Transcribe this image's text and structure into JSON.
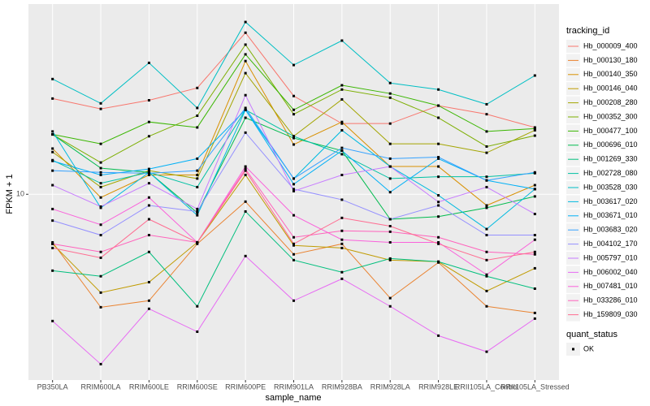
{
  "chart_data": {
    "type": "line",
    "x_label": "sample_name",
    "y_label": "FPKM + 1",
    "log_y": true,
    "grid": true,
    "ylim": [
      1.73,
      60.3
    ],
    "yticks": [
      10
    ],
    "legend_title": "tracking_id",
    "point_legend": {
      "title": "quant_status",
      "entries": [
        "OK"
      ],
      "color": "#000000"
    },
    "categories": [
      "PB350LA",
      "RRIM600LA",
      "RRIM600LE",
      "RRIM600SE",
      "RRIM600PE",
      "RRIM901LA",
      "RRIM928BA",
      "RRIM928LA",
      "RRIM928LE",
      "RRII105LA_Control",
      "RRII105LA_Stressed"
    ],
    "series": [
      {
        "name": "Hb_000009_400",
        "color": "#F8766D",
        "values": [
          24.7,
          22.4,
          24.3,
          27.3,
          46.0,
          25.3,
          19.5,
          19.5,
          23.1,
          21.3,
          18.8
        ]
      },
      {
        "name": "Hb_000130_180",
        "color": "#EA8331",
        "values": [
          6.35,
          3.44,
          3.66,
          6.26,
          9.33,
          5.67,
          6.26,
          3.75,
          5.25,
          3.47,
          3.26
        ]
      },
      {
        "name": "Hb_000140_350",
        "color": "#D89000",
        "values": [
          15.4,
          9.7,
          12.0,
          12.0,
          35.2,
          16.0,
          19.8,
          13.0,
          13.0,
          9.0,
          10.9
        ]
      },
      {
        "name": "Hb_000146_040",
        "color": "#C09B00",
        "values": [
          6.26,
          3.95,
          4.36,
          6.35,
          12.0,
          6.17,
          6.02,
          5.37,
          5.29,
          4.01,
          4.97
        ]
      },
      {
        "name": "Hb_000208_280",
        "color": "#A3A500",
        "values": [
          14.9,
          10.7,
          12.5,
          11.6,
          31.4,
          17.3,
          24.5,
          16.1,
          16.1,
          14.8,
          18.3
        ]
      },
      {
        "name": "Hb_000352_300",
        "color": "#7CAE00",
        "values": [
          17.6,
          13.5,
          17.3,
          21.0,
          41.1,
          21.3,
          26.9,
          24.9,
          20.6,
          15.7,
          17.4
        ]
      },
      {
        "name": "Hb_000477_100",
        "color": "#39B600",
        "values": [
          17.6,
          16.1,
          19.8,
          18.8,
          37.5,
          22.2,
          28.0,
          25.9,
          23.1,
          18.1,
          18.6
        ]
      },
      {
        "name": "Hb_000696_010",
        "color": "#00BB4E",
        "values": [
          17.6,
          12.8,
          12.3,
          8.4,
          20.6,
          17.0,
          15.1,
          7.9,
          8.1,
          8.8,
          9.8
        ]
      },
      {
        "name": "Hb_001269_330",
        "color": "#00BF7D",
        "values": [
          4.86,
          4.61,
          5.8,
          3.47,
          8.5,
          5.37,
          4.79,
          5.45,
          5.29,
          4.61,
          4.1
        ]
      },
      {
        "name": "Hb_002728_080",
        "color": "#00C1A3",
        "values": [
          13.8,
          11.1,
          12.3,
          10.7,
          22.2,
          17.3,
          14.6,
          11.6,
          11.8,
          11.8,
          12.2
        ]
      },
      {
        "name": "Hb_003528_030",
        "color": "#00BFC4",
        "values": [
          29.7,
          23.6,
          34.6,
          22.6,
          50.9,
          33.9,
          42.7,
          28.6,
          26.9,
          23.4,
          30.7
        ]
      },
      {
        "name": "Hb_003617_020",
        "color": "#00BAE0",
        "values": [
          18.1,
          8.8,
          12.3,
          8.2,
          22.2,
          11.6,
          18.3,
          13.0,
          9.9,
          7.2,
          10.5
        ]
      },
      {
        "name": "Hb_003671_010",
        "color": "#00B0F6",
        "values": [
          13.7,
          12.0,
          12.7,
          14.0,
          22.2,
          11.0,
          15.1,
          10.2,
          14.0,
          11.4,
          10.5
        ]
      },
      {
        "name": "Hb_003683_020",
        "color": "#35A2FF",
        "values": [
          12.5,
          12.3,
          12.2,
          12.5,
          22.6,
          11.6,
          15.5,
          14.0,
          14.2,
          11.4,
          12.3
        ]
      },
      {
        "name": "Hb_004102_170",
        "color": "#9590FF",
        "values": [
          7.8,
          6.8,
          9.0,
          8.5,
          17.9,
          10.5,
          9.5,
          7.9,
          9.0,
          6.8,
          6.8
        ]
      },
      {
        "name": "Hb_005797_010",
        "color": "#C77CFF",
        "values": [
          10.9,
          8.9,
          11.1,
          8.7,
          25.5,
          10.3,
          12.0,
          13.0,
          9.3,
          10.7,
          8.3
        ]
      },
      {
        "name": "Hb_006002_040",
        "color": "#E76BF3",
        "values": [
          3.02,
          2.01,
          3.39,
          2.73,
          5.58,
          3.66,
          4.5,
          3.47,
          2.63,
          2.26,
          3.09
        ]
      },
      {
        "name": "Hb_007481_010",
        "color": "#FA62DB",
        "values": [
          8.7,
          7.5,
          9.7,
          6.35,
          13.0,
          8.2,
          6.51,
          6.35,
          6.35,
          4.68,
          6.51
        ]
      },
      {
        "name": "Hb_033286_010",
        "color": "#FF62BC",
        "values": [
          6.26,
          5.8,
          6.8,
          6.35,
          12.7,
          6.66,
          7.08,
          7.02,
          6.66,
          5.8,
          5.67
        ]
      },
      {
        "name": "Hb_159809_030",
        "color": "#FF6C91",
        "values": [
          6.02,
          5.49,
          7.9,
          6.35,
          12.5,
          6.26,
          8.0,
          7.4,
          6.26,
          5.37,
          5.8
        ]
      }
    ]
  }
}
